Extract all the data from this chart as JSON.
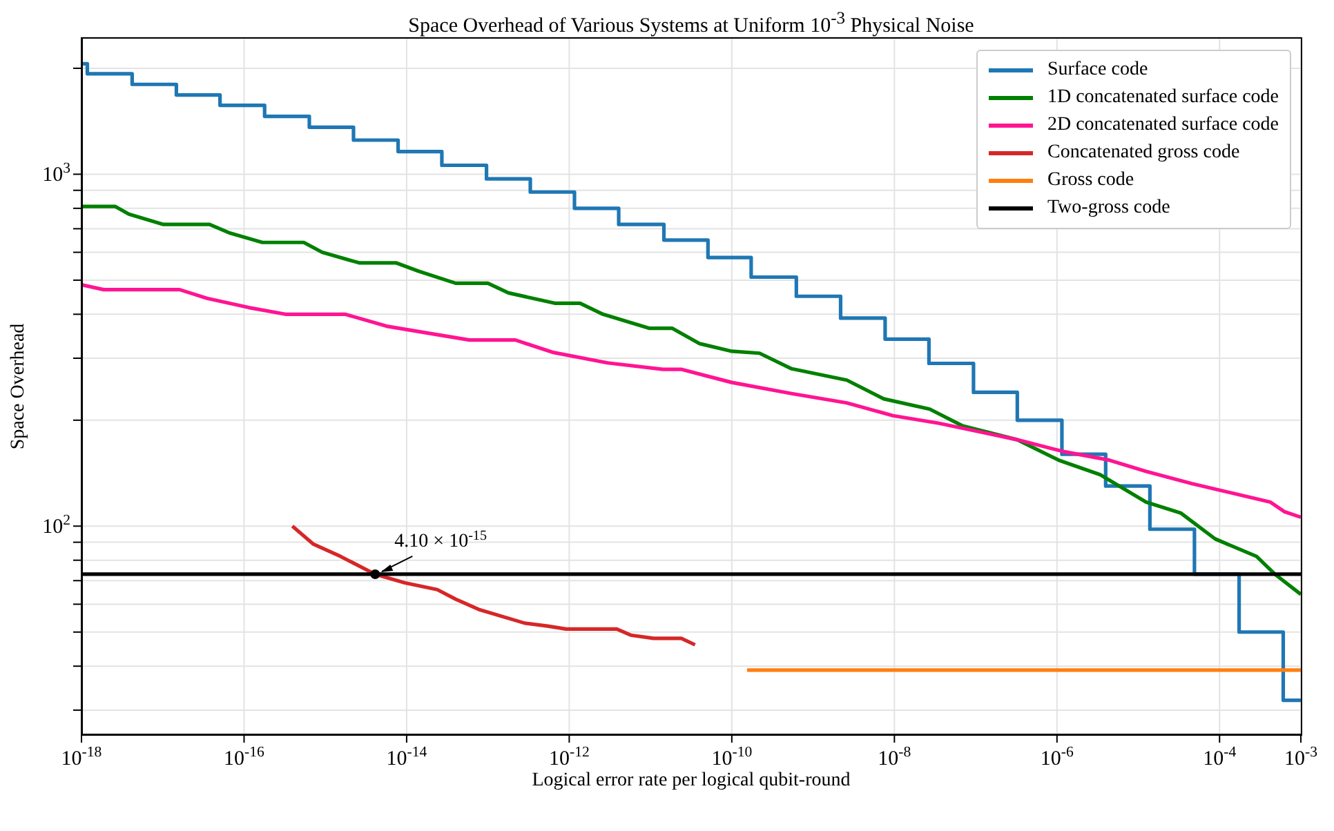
{
  "chart_data": {
    "type": "line",
    "title": "Space Overhead of Various Systems at Uniform 10$^{-3}$ Physical Noise",
    "xlabel": "Logical error rate per logical qubit-round",
    "ylabel": "Space Overhead",
    "log": "xy",
    "grid": true,
    "legend": "top right",
    "line_style": "solid",
    "marker": "none",
    "xlim": [
      1e-18,
      0.001
    ],
    "ylim": [
      25.6,
      2450
    ],
    "xticks": [
      {
        "value": 1e-18,
        "label": "10$^{-18}$"
      },
      {
        "value": 1e-16,
        "label": "10$^{-16}$"
      },
      {
        "value": 1e-14,
        "label": "10$^{-14}$"
      },
      {
        "value": 1e-12,
        "label": "10$^{-12}$"
      },
      {
        "value": 1e-10,
        "label": "10$^{-10}$"
      },
      {
        "value": 1e-08,
        "label": "10$^{-8}$"
      },
      {
        "value": 1e-06,
        "label": "10$^{-6}$"
      },
      {
        "value": 0.0001,
        "label": "10$^{-4}$"
      },
      {
        "value": 0.001,
        "label": "10$^{-3}$"
      }
    ],
    "yticks": [
      {
        "value": 30,
        "label": null
      },
      {
        "value": 40,
        "label": null
      },
      {
        "value": 50,
        "label": null
      },
      {
        "value": 60,
        "label": null
      },
      {
        "value": 70,
        "label": null
      },
      {
        "value": 80,
        "label": null
      },
      {
        "value": 90,
        "label": null
      },
      {
        "value": 100,
        "label": "10$^{2}$"
      },
      {
        "value": 200,
        "label": null
      },
      {
        "value": 300,
        "label": null
      },
      {
        "value": 400,
        "label": null
      },
      {
        "value": 500,
        "label": null
      },
      {
        "value": 600,
        "label": null
      },
      {
        "value": 700,
        "label": null
      },
      {
        "value": 800,
        "label": null
      },
      {
        "value": 900,
        "label": null
      },
      {
        "value": 1000,
        "label": "10$^{3}$"
      },
      {
        "value": 2000,
        "label": null
      }
    ],
    "annotations": [
      {
        "text": "4.10 × 10$^{-15}$",
        "x": 4.1e-15,
        "y": 73
      }
    ],
    "series": [
      {
        "name": "Surface code",
        "type": "step",
        "color": "#1f77b4",
        "x": [
          1e-18,
          1.18e-18,
          4.2e-18,
          1.47e-17,
          5.06e-17,
          1.79e-16,
          6.35e-16,
          2.22e-15,
          7.85e-15,
          2.71e-14,
          9.6e-14,
          3.32e-13,
          1.16e-12,
          4.06e-12,
          1.46e-11,
          5.09e-11,
          1.73e-10,
          6.22e-10,
          2.18e-09,
          7.69e-09,
          2.66e-08,
          9.4e-08,
          3.25e-07,
          1.15e-06,
          3.97e-06,
          1.39e-05,
          4.91e-05,
          0.000174,
          0.000607,
          0.001
        ],
        "values": [
          2060,
          1930,
          1800,
          1680,
          1570,
          1460,
          1360,
          1250,
          1160,
          1060,
          970,
          890,
          800,
          720,
          650,
          580,
          510,
          450,
          390,
          340,
          290,
          240,
          200,
          160,
          130,
          98,
          73,
          50,
          32,
          32
        ]
      },
      {
        "name": "1D concatenated surface code",
        "color": "#008000",
        "x": [
          1e-18,
          2.59e-18,
          3.83e-18,
          1.02e-17,
          3.76e-17,
          6.75e-17,
          1.68e-16,
          5.43e-16,
          9.14e-16,
          2.6e-15,
          7.38e-15,
          1.41e-14,
          4.01e-14,
          9.98e-14,
          1.79e-13,
          6.62e-13,
          1.36e-12,
          2.6e-12,
          9.59e-12,
          1.84e-11,
          4.03e-11,
          1e-10,
          2.19e-10,
          5.45e-10,
          2.6e-09,
          7.4e-09,
          2.72e-08,
          6.8e-08,
          3.25e-07,
          1.05e-06,
          3.4e-06,
          1.25e-05,
          3.32e-05,
          8.82e-05,
          0.000285,
          0.00048,
          0.001
        ],
        "values": [
          810,
          810,
          770,
          720,
          720,
          680,
          640,
          640,
          600,
          560,
          560,
          530,
          490,
          490,
          460,
          430,
          430,
          400,
          365,
          365,
          330,
          314,
          310,
          280,
          260,
          230,
          215,
          193,
          176,
          154,
          140,
          117,
          109,
          92,
          82,
          73,
          64
        ]
      },
      {
        "name": "2D concatenated surface code",
        "color": "#ff1493",
        "x": [
          1e-18,
          1.87e-18,
          1.61e-17,
          3.51e-17,
          1.14e-16,
          3.23e-16,
          1.75e-15,
          5.67e-15,
          2.38e-14,
          5.93e-14,
          2.18e-13,
          6.21e-13,
          2.96e-12,
          1.42e-11,
          2.38e-11,
          1e-10,
          5.45e-10,
          2.6e-09,
          9.6e-09,
          3.53e-08,
          1.3e-07,
          3.25e-07,
          1.19e-06,
          4.4e-06,
          1.25e-05,
          4.59e-05,
          0.00017,
          0.000423,
          0.000624,
          0.001
        ],
        "values": [
          485,
          470,
          470,
          444,
          418,
          400,
          400,
          370,
          350,
          338,
          338,
          312,
          291,
          279,
          279,
          256,
          238,
          224,
          206,
          196,
          184,
          176,
          163,
          154,
          143,
          132,
          123,
          117,
          110,
          106
        ]
      },
      {
        "name": "Concatenated gross code",
        "color": "#d62728",
        "x": [
          3.93e-16,
          7.06e-16,
          1.54e-15,
          4.1e-15,
          9.55e-15,
          2.38e-14,
          4.01e-14,
          7.7e-14,
          2.84e-13,
          5.45e-13,
          9.16e-13,
          3.85e-12,
          5.7e-12,
          1.09e-11,
          2.39e-11,
          3.53e-11
        ],
        "values": [
          100,
          89,
          82,
          73,
          69,
          66,
          62,
          58,
          53,
          52,
          51,
          51,
          49,
          48,
          48,
          46
        ]
      },
      {
        "name": "Gross code",
        "color": "#ff7f0e",
        "x": [
          1.54e-10,
          0.001
        ],
        "values": [
          39,
          39
        ]
      },
      {
        "name": "Two-gross code",
        "color": "#000000",
        "x": [
          1e-18,
          0.001
        ],
        "values": [
          73,
          73
        ]
      }
    ]
  }
}
